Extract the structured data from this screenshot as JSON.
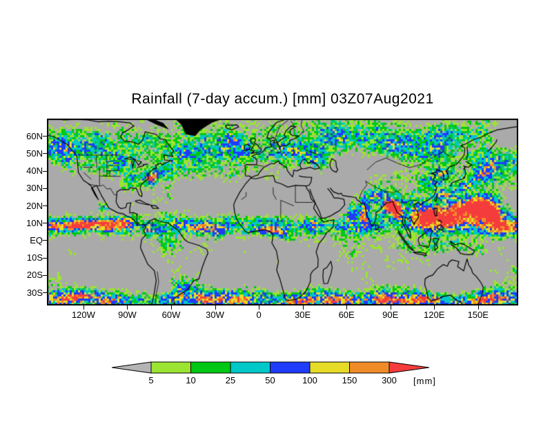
{
  "title": "Rainfall (7-day accum.) [mm] 03Z07Aug2021",
  "axes": {
    "y_ticks": [
      {
        "label": "60N",
        "lat": 60
      },
      {
        "label": "50N",
        "lat": 50
      },
      {
        "label": "40N",
        "lat": 40
      },
      {
        "label": "30N",
        "lat": 30
      },
      {
        "label": "20N",
        "lat": 20
      },
      {
        "label": "10N",
        "lat": 10
      },
      {
        "label": "EQ",
        "lat": 0
      },
      {
        "label": "10S",
        "lat": -10
      },
      {
        "label": "20S",
        "lat": -20
      },
      {
        "label": "30S",
        "lat": -30
      }
    ],
    "x_ticks": [
      {
        "label": "120W",
        "lon": -120
      },
      {
        "label": "90W",
        "lon": -90
      },
      {
        "label": "60W",
        "lon": -60
      },
      {
        "label": "30W",
        "lon": -30
      },
      {
        "label": "0",
        "lon": 0
      },
      {
        "label": "30E",
        "lon": 30
      },
      {
        "label": "60E",
        "lon": 60
      },
      {
        "label": "90E",
        "lon": 90
      },
      {
        "label": "120E",
        "lon": 120
      },
      {
        "label": "150E",
        "lon": 150
      }
    ]
  },
  "colorbar": {
    "units": "[mm]",
    "tick_labels": [
      "5",
      "10",
      "25",
      "50",
      "100",
      "150",
      "300"
    ],
    "below_min_color": "#b4b4b4",
    "above_max_color": "#f53c3c",
    "segments": [
      {
        "range": "5-10",
        "color": "#9be432"
      },
      {
        "range": "10-25",
        "color": "#00c814"
      },
      {
        "range": "25-50",
        "color": "#00c8c8"
      },
      {
        "range": "50-100",
        "color": "#1e3cfa"
      },
      {
        "range": "100-150",
        "color": "#e6dc28"
      },
      {
        "range": "150-300",
        "color": "#f08c28"
      }
    ]
  },
  "map": {
    "background_color": "#aaaaaa",
    "coastline_color": "#000000",
    "lon_range": [
      -145,
      177.5
    ],
    "lat_range": [
      -37.5,
      70
    ]
  },
  "chart_data": {
    "type": "heatmap",
    "title": "Rainfall (7-day accum.) [mm] 03Z07Aug2021",
    "variable": "7-day accumulated rainfall",
    "units": "mm",
    "levels": [
      5,
      10,
      25,
      50,
      100,
      150,
      300
    ],
    "level_colors": [
      "#9be432",
      "#00c814",
      "#00c8c8",
      "#1e3cfa",
      "#e6dc28",
      "#f08c28",
      "#f53c3c"
    ],
    "x_tick_labels": [
      "120W",
      "90W",
      "60W",
      "30W",
      "0",
      "30E",
      "60E",
      "90E",
      "120E",
      "150E"
    ],
    "y_tick_labels": [
      "60N",
      "50N",
      "40N",
      "30N",
      "20N",
      "10N",
      "EQ",
      "10S",
      "20S",
      "30S"
    ],
    "legend_position": "bottom"
  }
}
